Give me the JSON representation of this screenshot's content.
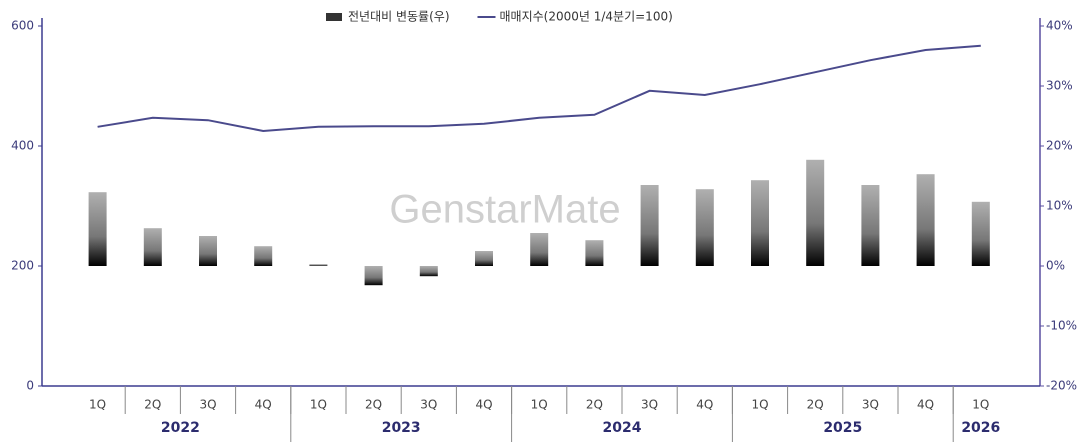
{
  "chart_data": {
    "type": "bar_line",
    "watermark": "GenstarMate",
    "groups": [
      {
        "name": "2022",
        "categories": [
          "1Q",
          "2Q",
          "3Q",
          "4Q"
        ]
      },
      {
        "name": "2023",
        "categories": [
          "1Q",
          "2Q",
          "3Q",
          "4Q"
        ]
      },
      {
        "name": "2024",
        "categories": [
          "1Q",
          "2Q",
          "3Q",
          "4Q"
        ]
      },
      {
        "name": "2025",
        "categories": [
          "1Q",
          "2Q",
          "3Q",
          "4Q"
        ]
      },
      {
        "name": "2026",
        "categories": [
          "1Q"
        ]
      }
    ],
    "series": [
      {
        "name": "전년대비 변동률(우)",
        "type": "bar",
        "axis": "y2",
        "color": "#333333",
        "values": [
          12.3,
          6.3,
          5.0,
          3.3,
          0.3,
          -3.2,
          -1.7,
          2.5,
          5.5,
          4.3,
          13.5,
          12.8,
          14.3,
          17.7,
          13.5,
          15.3,
          10.7
        ]
      },
      {
        "name": "매매지수(2000년 1/4분기=100)",
        "type": "line",
        "axis": "y",
        "color": "#4a4a8c",
        "values": [
          432,
          447,
          443,
          425,
          432,
          433,
          433,
          437,
          447,
          452,
          492,
          485,
          503,
          523,
          543,
          560,
          567
        ]
      }
    ],
    "ylim": [
      0,
      600
    ],
    "yticks": [
      0,
      200,
      400,
      600
    ],
    "y2lim": [
      -20,
      40
    ],
    "y2ticks": [
      {
        "value": -20,
        "label": "-20%"
      },
      {
        "value": -10,
        "label": "-10%"
      },
      {
        "value": 0,
        "label": "0%"
      },
      {
        "value": 10,
        "label": "10%"
      },
      {
        "value": 20,
        "label": "20%"
      },
      {
        "value": 30,
        "label": "30%"
      },
      {
        "value": 40,
        "label": "40%"
      }
    ]
  }
}
